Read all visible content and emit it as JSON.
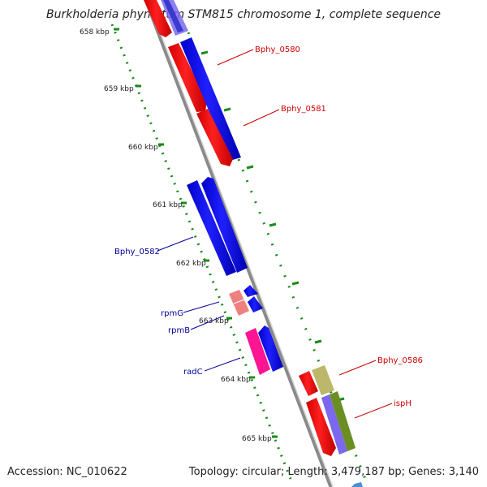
{
  "title": "Burkholderia phymatum STM815 chromosome 1, complete sequence",
  "accession": "Accession: NC_010622",
  "topology": "Topology: circular; Length: 3,479,187 bp; Genes: 3,140",
  "ticks": [
    "658 kbp",
    "659 kbp",
    "660 kbp",
    "661 kbp",
    "662 kbp",
    "663 kbp",
    "664 kbp",
    "665 kbp"
  ],
  "gene_labels": {
    "bphy_0580": "Bphy_0580",
    "bphy_0581": "Bphy_0581",
    "bphy_0582": "Bphy_0582",
    "rpmg": "rpmG",
    "rpmb": "rpmB",
    "radc": "radC",
    "bphy_0586": "Bphy_0586",
    "isph": "ispH"
  },
  "colors": {
    "forward_strand": "#0000ee",
    "reverse_strand": "#ee0000",
    "rna": "#ff1493",
    "light_red": "#f08080",
    "khaki": "#bdb76b",
    "olive": "#6b8e23",
    "slate": "#7b68ee",
    "backbone": "#888888",
    "tick": "#228b22",
    "label_red": "#cc0000",
    "label_blue": "#000099"
  }
}
